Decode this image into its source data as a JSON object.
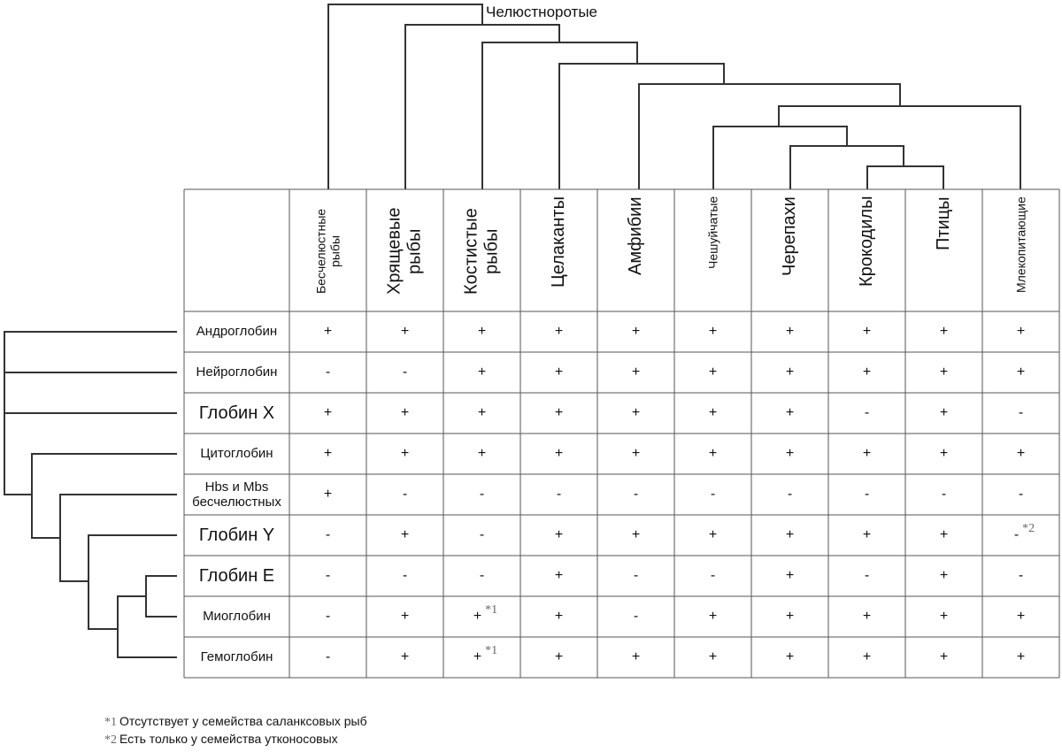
{
  "clade_label": "Челюстноротые",
  "table": {
    "columns": [
      "Бесчелюстные рыбы",
      "Хрящевые рыбы",
      "Костистые рыбы",
      "Целаканты",
      "Амфибии",
      "Чешуйчатые",
      "Черепахи",
      "Крокодилы",
      "Птицы",
      "Млекопитающие"
    ],
    "rows": [
      {
        "label": "Андроглобин",
        "cells": [
          "+",
          "+",
          "+",
          "+",
          "+",
          "+",
          "+",
          "+",
          "+",
          "+"
        ]
      },
      {
        "label": "Нейроглобин",
        "cells": [
          "-",
          "-",
          "+",
          "+",
          "+",
          "+",
          "+",
          "+",
          "+",
          "+"
        ]
      },
      {
        "label": "Глобин X",
        "cells": [
          "+",
          "+",
          "+",
          "+",
          "+",
          "+",
          "+",
          "-",
          "+",
          "-"
        ]
      },
      {
        "label": "Цитоглобин",
        "cells": [
          "+",
          "+",
          "+",
          "+",
          "+",
          "+",
          "+",
          "+",
          "+",
          "+"
        ]
      },
      {
        "label": "Hbs и Mbs бесчелюстных",
        "cells": [
          "+",
          "-",
          "-",
          "-",
          "-",
          "-",
          "-",
          "-",
          "-",
          "-"
        ]
      },
      {
        "label": "Глобин Y",
        "cells": [
          "-",
          "+",
          "-",
          "+",
          "+",
          "+",
          "+",
          "+",
          "+",
          {
            "mark": "-",
            "note": "*2"
          }
        ]
      },
      {
        "label": "Глобин E",
        "cells": [
          "-",
          "-",
          "-",
          "+",
          "-",
          "-",
          "+",
          "-",
          "+",
          "-"
        ]
      },
      {
        "label": "Миоглобин",
        "cells": [
          "-",
          "+",
          {
            "mark": "+",
            "note": "*1"
          },
          "+",
          "-",
          "+",
          "+",
          "+",
          "+",
          "+"
        ]
      },
      {
        "label": "Гемоглобин",
        "cells": [
          "-",
          "+",
          {
            "mark": "+",
            "note": "*1"
          },
          "+",
          "+",
          "+",
          "+",
          "+",
          "+",
          "+"
        ]
      }
    ]
  },
  "footnotes": [
    {
      "marker": "*1",
      "text": "Отсутствует у семейства саланксовых рыб"
    },
    {
      "marker": "*2",
      "text": "Есть только у семейства утконосовых"
    }
  ]
}
